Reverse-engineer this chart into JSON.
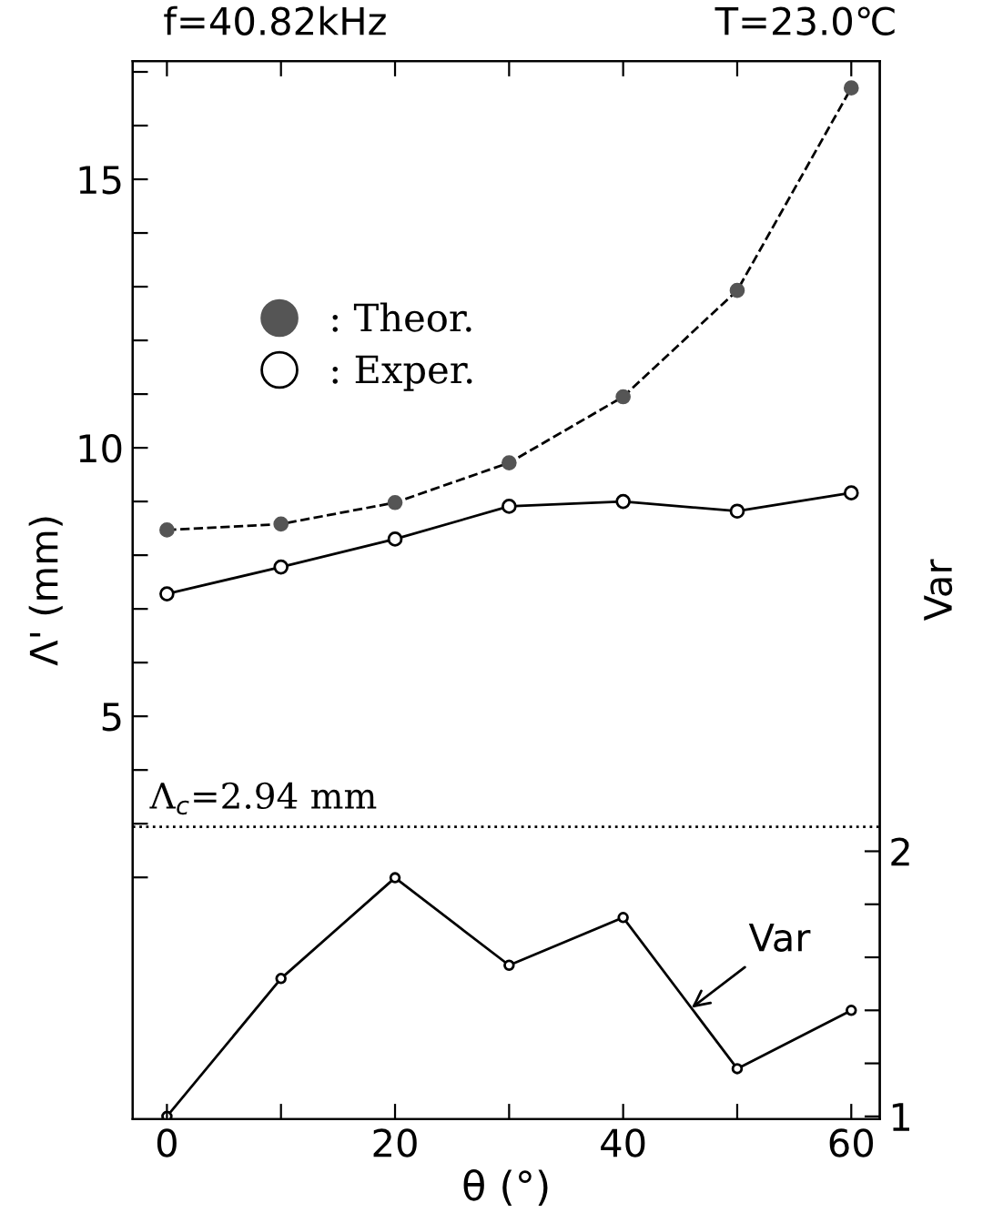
{
  "chart_data": {
    "type": "line",
    "title": "f=40.82kHz",
    "subtitle": "T=23.0℃",
    "xlabel": "θ (°)",
    "ylabel": "Λ' (mm)",
    "y2label": "Var",
    "x": [
      0,
      10,
      20,
      30,
      40,
      50,
      60
    ],
    "series": [
      {
        "name": ": Theor.",
        "color": "#555555",
        "marker": "circle",
        "line_style": "dashed",
        "values": [
          8.47,
          8.58,
          8.98,
          9.72,
          10.95,
          12.93,
          16.7
        ]
      },
      {
        "name": ": Exper.",
        "color": "#000000",
        "marker": "circle",
        "line_style": "solid",
        "values": [
          7.28,
          7.78,
          8.3,
          8.91,
          9.0,
          8.82,
          9.16
        ]
      },
      {
        "color": "#000000",
        "marker": "circle",
        "line_style": "solid",
        "axis": "y2",
        "values": [
          1.0,
          1.52,
          1.9,
          1.57,
          1.75,
          1.18,
          1.4
        ]
      }
    ],
    "xlim": [
      -3,
      62.5
    ],
    "xticks": [
      0,
      {
        "value": 10,
        "label": null
      },
      20,
      {
        "value": 30,
        "label": null
      },
      40,
      {
        "value": 50,
        "label": null
      },
      60
    ],
    "ylim": [
      -2.5,
      17.2
    ],
    "yticks": [
      {
        "value": 2,
        "label": null
      },
      {
        "value": 3,
        "label": null
      },
      {
        "value": 4,
        "label": null
      },
      5,
      {
        "value": 6,
        "label": null
      },
      {
        "value": 7,
        "label": null
      },
      {
        "value": 8,
        "label": null
      },
      {
        "value": 9,
        "label": null
      },
      10,
      {
        "value": 11,
        "label": null
      },
      {
        "value": 12,
        "label": null
      },
      {
        "value": 13,
        "label": null
      },
      {
        "value": 14,
        "label": null
      },
      15,
      {
        "value": 16,
        "label": null
      },
      {
        "value": 17,
        "label": null
      }
    ],
    "y2lim": [
      0.99,
      4.98
    ],
    "y2ticks": [
      1,
      {
        "value": 1.2,
        "label": null
      },
      {
        "value": 1.4,
        "label": null
      },
      {
        "value": 1.6,
        "label": null
      },
      {
        "value": 1.8,
        "label": null
      },
      2
    ],
    "ref_lines": [
      {
        "axis": "y",
        "value": 2.94,
        "label": "Λ$_{c}$=2.94 mm",
        "line_style": "dotted",
        "color": "#000000"
      }
    ],
    "annotations": [
      {
        "text": "Var",
        "x": 46,
        "y": -0.43
      }
    ],
    "legend": "left",
    "grid": false
  }
}
